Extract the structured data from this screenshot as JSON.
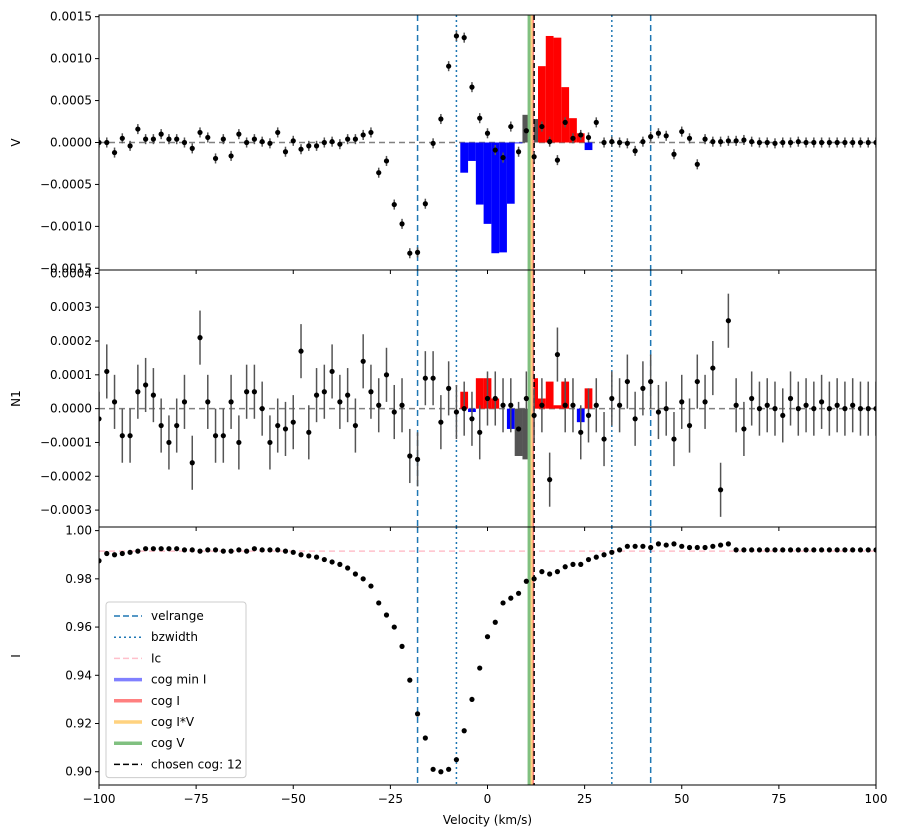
{
  "chart_data": {
    "type": "scatter",
    "xlabel": "Velocity (km/s)",
    "xlim": [
      -100,
      100
    ],
    "x_ticks": [
      "−100",
      "−75",
      "−50",
      "−25",
      "0",
      "25",
      "50",
      "75",
      "100"
    ],
    "x_tick_values": [
      -100,
      -75,
      -50,
      -25,
      0,
      25,
      50,
      75,
      100
    ],
    "velrange": [
      -18,
      42
    ],
    "bzwidth": [
      -8,
      32
    ],
    "cog_lines": {
      "cog_min_I": 11.0,
      "cog_I": 11.6,
      "cog_IV": 11.2,
      "cog_V": 10.7,
      "chosen": 12
    },
    "colors": {
      "velrange": "#1f77b4",
      "bzwidth": "#1f77b4",
      "lc": "#ffc0cb",
      "cog_min_I": "#8080ff",
      "cog_I": "#ff8080",
      "cog_IV": "#ffd27f",
      "cog_V": "#80c080",
      "chosen": "#000000",
      "positive_fill": "#ff0000",
      "negative_fill": "#0000ff",
      "points": "#000000"
    },
    "panels": [
      {
        "ylabel": "V",
        "ylim": [
          -0.00152,
          0.00152
        ],
        "y_ticks": [
          "−0.0015",
          "−0.0010",
          "−0.0005",
          "0.0000",
          "0.0005",
          "0.0010",
          "0.0015"
        ],
        "y_tick_values": [
          -0.0015,
          -0.001,
          -0.0005,
          0,
          0.0005,
          0.001,
          0.0015
        ],
        "reference": 0,
        "x": [
          -100,
          -98,
          -96,
          -94,
          -92,
          -90,
          -88,
          -86,
          -84,
          -82,
          -80,
          -78,
          -76,
          -74,
          -72,
          -70,
          -68,
          -66,
          -64,
          -62,
          -60,
          -58,
          -56,
          -54,
          -52,
          -50,
          -48,
          -46,
          -44,
          -42,
          -40,
          -38,
          -36,
          -34,
          -32,
          -30,
          -28,
          -26,
          -24,
          -22,
          -20,
          -18,
          -16,
          -14,
          -12,
          -10,
          -8,
          -6,
          -4,
          -2,
          0,
          2,
          4,
          6,
          8,
          10,
          12,
          14,
          16,
          18,
          20,
          22,
          24,
          26,
          28,
          30,
          32,
          34,
          36,
          38,
          40,
          42,
          44,
          46,
          48,
          50,
          52,
          54,
          56,
          58,
          60,
          62,
          64,
          66,
          68,
          70,
          72,
          74,
          76,
          78,
          80,
          82,
          84,
          86,
          88,
          90,
          92,
          94,
          96,
          98,
          100
        ],
        "y": [
          0,
          0,
          -0.00012,
          5e-05,
          -4e-05,
          0.00016,
          4e-05,
          4e-05,
          0.0001,
          4e-05,
          4e-05,
          0,
          -7e-05,
          0.00012,
          6e-05,
          -0.00019,
          4e-05,
          -0.00016,
          0.0001,
          0,
          4e-05,
          1e-05,
          -1e-05,
          0.00012,
          -0.00011,
          2e-05,
          -8e-05,
          -4e-05,
          -4e-05,
          0,
          1e-05,
          -2e-05,
          4e-05,
          4e-05,
          9e-05,
          0.00012,
          -0.00036,
          -0.00022,
          -0.00074,
          -0.00097,
          -0.00132,
          -0.00131,
          -0.00073,
          -1e-05,
          0.00028,
          0.00091,
          0.00127,
          0.00125,
          0.00066,
          0.00029,
          0.00011,
          -9e-05,
          -0.00018,
          0.00019,
          -0.00011,
          0.00014,
          -0.00017,
          0.00019,
          1e-05,
          -0.00021,
          0.00024,
          5e-05,
          9e-05,
          6e-05,
          0.00024,
          0,
          1e-05,
          0,
          -1e-05,
          -0.0001,
          1e-05,
          7e-05,
          0.00011,
          8e-05,
          -0.00014,
          0.00013,
          5e-05,
          -0.00026,
          4e-05,
          1e-05,
          1e-05,
          2e-05,
          2e-05,
          3e-05,
          1e-05,
          0,
          0,
          -1e-05,
          0,
          0,
          1e-05,
          0,
          0,
          0,
          0,
          0,
          0,
          0,
          0,
          0,
          0
        ],
        "err": 6e-05,
        "bars_x": [
          -6,
          -4,
          -2,
          0,
          2,
          4,
          6,
          8,
          10,
          12,
          14,
          16,
          18,
          20,
          22,
          24,
          26,
          28,
          30
        ],
        "bars_y": [
          -0.00036,
          -0.00022,
          -0.00074,
          -0.00097,
          -0.00132,
          -0.00131,
          -0.00073,
          -1e-05,
          0.00033,
          0.00028,
          0.00091,
          0.00127,
          0.00125,
          0.00066,
          0.00029,
          0.00011,
          -9e-05,
          0,
          0
        ]
      },
      {
        "ylabel": "N1",
        "ylim": [
          -0.00035,
          0.00041
        ],
        "y_ticks": [
          "−0.0003",
          "−0.0002",
          "−0.0001",
          "0.0000",
          "0.0001",
          "0.0002",
          "0.0003",
          "0.0004"
        ],
        "y_tick_values": [
          -0.0003,
          -0.0002,
          -0.0001,
          0,
          0.0001,
          0.0002,
          0.0003,
          0.0004
        ],
        "reference": 0,
        "x": [
          -100,
          -98,
          -96,
          -94,
          -92,
          -90,
          -88,
          -86,
          -84,
          -82,
          -80,
          -78,
          -76,
          -74,
          -72,
          -70,
          -68,
          -66,
          -64,
          -62,
          -60,
          -58,
          -56,
          -54,
          -52,
          -50,
          -48,
          -46,
          -44,
          -42,
          -40,
          -38,
          -36,
          -34,
          -32,
          -30,
          -28,
          -26,
          -24,
          -22,
          -20,
          -18,
          -16,
          -14,
          -12,
          -10,
          -8,
          -6,
          -4,
          -2,
          0,
          2,
          4,
          6,
          8,
          10,
          12,
          14,
          16,
          18,
          20,
          22,
          24,
          26,
          28,
          30,
          32,
          34,
          36,
          38,
          40,
          42,
          44,
          46,
          48,
          50,
          52,
          54,
          56,
          58,
          60,
          62,
          64,
          66,
          68,
          70,
          72,
          74,
          76,
          78,
          80,
          82,
          84,
          86,
          88,
          90,
          92,
          94,
          96,
          98,
          100
        ],
        "y": [
          -3e-05,
          0.00011,
          2e-05,
          -8e-05,
          -8e-05,
          5e-05,
          7e-05,
          4e-05,
          -5e-05,
          -0.0001,
          -5e-05,
          2e-05,
          -0.00016,
          0.00021,
          2e-05,
          -8e-05,
          -8e-05,
          2e-05,
          -0.0001,
          5e-05,
          5e-05,
          0,
          -0.0001,
          -5e-05,
          -6e-05,
          -4e-05,
          0.00017,
          -7e-05,
          4e-05,
          5e-05,
          0.00011,
          2e-05,
          4e-05,
          -5e-05,
          0.00014,
          5e-05,
          1e-05,
          0.0001,
          -1e-05,
          1e-05,
          -0.00014,
          -0.00015,
          9e-05,
          9e-05,
          -4e-05,
          6e-05,
          -1e-05,
          0,
          -3e-05,
          -7e-05,
          3e-05,
          3e-05,
          1e-05,
          1e-05,
          -6e-05,
          3e-05,
          -2e-05,
          1e-05,
          -0.00021,
          0.00016,
          1e-05,
          1e-05,
          -7e-05,
          -2e-05,
          1e-05,
          -9e-05,
          3e-05,
          1e-05,
          8e-05,
          -3e-05,
          6e-05,
          8e-05,
          -1e-05,
          0,
          -9e-05,
          2e-05,
          -5e-05,
          8e-05,
          2e-05,
          0.00012,
          -0.00024,
          0.00026,
          1e-05,
          -6e-05,
          3e-05,
          0,
          1e-05,
          0,
          -2e-05,
          3e-05,
          0,
          1e-05,
          0,
          2e-05,
          0,
          1e-05,
          0,
          1e-05,
          0,
          0,
          0
        ],
        "err": 8e-05,
        "bars_x": [
          -6,
          -4,
          -2,
          0,
          2,
          4,
          6,
          8,
          10,
          12,
          14,
          16,
          18,
          20,
          22,
          24,
          26,
          28,
          30
        ],
        "bars_y": [
          5e-05,
          -1e-05,
          9e-05,
          9e-05,
          3e-05,
          0,
          -6e-05,
          -0.00014,
          -0.00015,
          9e-05,
          3e-05,
          8e-05,
          1e-05,
          8e-05,
          0,
          -4e-05,
          6e-05,
          0,
          0
        ]
      },
      {
        "ylabel": "I",
        "ylim": [
          0.8945,
          1.0015
        ],
        "y_ticks": [
          "0.90",
          "0.92",
          "0.94",
          "0.96",
          "0.98",
          "1.00"
        ],
        "y_tick_values": [
          0.9,
          0.92,
          0.94,
          0.96,
          0.98,
          1.0
        ],
        "reference": 0.9915,
        "x": [
          -100,
          -98,
          -96,
          -94,
          -92,
          -90,
          -88,
          -86,
          -84,
          -82,
          -80,
          -78,
          -76,
          -74,
          -72,
          -70,
          -68,
          -66,
          -64,
          -62,
          -60,
          -58,
          -56,
          -54,
          -52,
          -50,
          -48,
          -46,
          -44,
          -42,
          -40,
          -38,
          -36,
          -34,
          -32,
          -30,
          -28,
          -26,
          -24,
          -22,
          -20,
          -18,
          -16,
          -14,
          -12,
          -10,
          -8,
          -6,
          -4,
          -2,
          0,
          2,
          4,
          6,
          8,
          10,
          12,
          14,
          16,
          18,
          20,
          22,
          24,
          26,
          28,
          30,
          32,
          34,
          36,
          38,
          40,
          42,
          44,
          46,
          48,
          50,
          52,
          54,
          56,
          58,
          60,
          62,
          64,
          66,
          68,
          70,
          72,
          74,
          76,
          78,
          80,
          82,
          84,
          86,
          88,
          90,
          92,
          94,
          96,
          98,
          100
        ],
        "y": [
          0.9875,
          0.9905,
          0.99,
          0.9905,
          0.991,
          0.9915,
          0.9925,
          0.9925,
          0.9925,
          0.9925,
          0.9925,
          0.992,
          0.992,
          0.9915,
          0.992,
          0.992,
          0.9915,
          0.9915,
          0.992,
          0.9915,
          0.9925,
          0.992,
          0.992,
          0.992,
          0.9915,
          0.991,
          0.99,
          0.9895,
          0.989,
          0.988,
          0.987,
          0.986,
          0.9845,
          0.982,
          0.98,
          0.977,
          0.97,
          0.965,
          0.96,
          0.952,
          0.938,
          0.924,
          0.914,
          0.901,
          0.9,
          0.901,
          0.905,
          0.917,
          0.93,
          0.943,
          0.956,
          0.962,
          0.97,
          0.972,
          0.974,
          0.979,
          0.98,
          0.983,
          0.982,
          0.983,
          0.985,
          0.986,
          0.986,
          0.988,
          0.989,
          0.99,
          0.991,
          0.992,
          0.9935,
          0.9935,
          0.9935,
          0.993,
          0.9945,
          0.994,
          0.9945,
          0.9935,
          0.993,
          0.993,
          0.993,
          0.9935,
          0.994,
          0.9945,
          0.992,
          0.992,
          0.992,
          0.992,
          0.992,
          0.992,
          0.992,
          0.992,
          0.992,
          0.992,
          0.992,
          0.992,
          0.992,
          0.992,
          0.992,
          0.992,
          0.992,
          0.992,
          0.992
        ],
        "err": 0.0006
      }
    ],
    "legend": {
      "placement": "lower-left",
      "items": [
        {
          "label": "velrange",
          "style": "dashed",
          "color": "#1f77b4"
        },
        {
          "label": "bzwidth",
          "style": "dotted",
          "color": "#1f77b4"
        },
        {
          "label": "Ic",
          "style": "dashed",
          "color": "#ffc0cb"
        },
        {
          "label": "cog min I",
          "style": "solid",
          "color": "#8080ff"
        },
        {
          "label": "cog I",
          "style": "solid",
          "color": "#ff8080"
        },
        {
          "label": "cog I*V",
          "style": "solid",
          "color": "#ffd27f"
        },
        {
          "label": "cog V",
          "style": "solid",
          "color": "#80c080"
        },
        {
          "label": "chosen cog: 12",
          "style": "dashed",
          "color": "#000000"
        }
      ]
    }
  }
}
